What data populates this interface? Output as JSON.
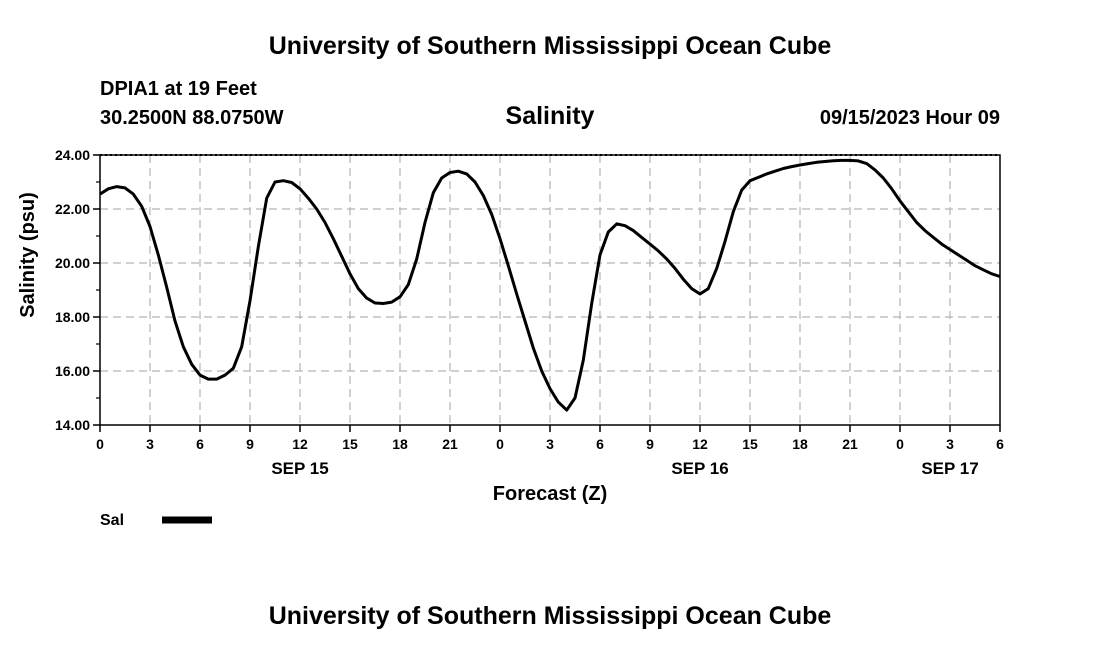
{
  "header": {
    "title": "University of Southern Mississippi Ocean Cube",
    "station": "DPIA1 at 19 Feet",
    "coords": "30.2500N  88.0750W",
    "timestamp": "09/15/2023 Hour 09"
  },
  "footer": {
    "title": "University of Southern Mississippi Ocean Cube"
  },
  "chart_data": {
    "type": "line",
    "title": "Salinity",
    "xlabel": "Forecast (Z)",
    "ylabel": "Salinity (psu)",
    "ylim": [
      14,
      24
    ],
    "xlim": [
      0,
      54
    ],
    "grid": true,
    "x_tick_labels": [
      "0",
      "3",
      "6",
      "9",
      "12",
      "15",
      "18",
      "21",
      "0",
      "3",
      "6",
      "9",
      "12",
      "15",
      "18",
      "21",
      "0",
      "3",
      "6"
    ],
    "y_tick_labels": [
      "14.00",
      "16.00",
      "18.00",
      "20.00",
      "22.00",
      "24.00"
    ],
    "day_labels": [
      {
        "label": "SEP 15",
        "hour": 12
      },
      {
        "label": "SEP 16",
        "hour": 36
      },
      {
        "label": "SEP 17",
        "hour": 51
      }
    ],
    "legend": {
      "placement": "bottom-left",
      "entries": [
        "Sal"
      ]
    },
    "series": [
      {
        "name": "Sal",
        "color": "#000000",
        "x": [
          0,
          0.5,
          1,
          1.5,
          2,
          2.5,
          3,
          3.5,
          4,
          4.5,
          5,
          5.5,
          6,
          6.5,
          7,
          7.5,
          8,
          8.5,
          9,
          9.5,
          10,
          10.5,
          11,
          11.5,
          12,
          12.5,
          13,
          13.5,
          14,
          14.5,
          15,
          15.5,
          16,
          16.5,
          17,
          17.5,
          18,
          18.5,
          19,
          19.5,
          20,
          20.5,
          21,
          21.5,
          22,
          22.5,
          23,
          23.5,
          24,
          24.5,
          25,
          25.5,
          26,
          26.5,
          27,
          27.5,
          28,
          28.5,
          29,
          29.5,
          30,
          30.5,
          31,
          31.5,
          32,
          32.5,
          33,
          33.5,
          34,
          34.5,
          35,
          35.5,
          36,
          36.5,
          37,
          37.5,
          38,
          38.5,
          39,
          39.5,
          40,
          40.5,
          41,
          41.5,
          42,
          42.5,
          43,
          43.5,
          44,
          44.5,
          45,
          45.5,
          46,
          46.5,
          47,
          47.5,
          48,
          48.5,
          49,
          49.5,
          50,
          50.5,
          51,
          51.5,
          52,
          52.5,
          53,
          53.5,
          54
        ],
        "values": [
          22.55,
          22.75,
          22.83,
          22.78,
          22.55,
          22.1,
          21.35,
          20.3,
          19.1,
          17.85,
          16.9,
          16.25,
          15.85,
          15.7,
          15.7,
          15.85,
          16.1,
          16.9,
          18.6,
          20.6,
          22.4,
          23.0,
          23.05,
          22.98,
          22.75,
          22.4,
          22.0,
          21.5,
          20.9,
          20.25,
          19.6,
          19.05,
          18.7,
          18.52,
          18.5,
          18.55,
          18.75,
          19.2,
          20.15,
          21.5,
          22.6,
          23.15,
          23.35,
          23.4,
          23.3,
          23.0,
          22.5,
          21.8,
          20.9,
          19.9,
          18.85,
          17.85,
          16.85,
          16.0,
          15.35,
          14.85,
          14.55,
          15.0,
          16.4,
          18.5,
          20.3,
          21.15,
          21.45,
          21.38,
          21.2,
          20.95,
          20.7,
          20.45,
          20.15,
          19.8,
          19.4,
          19.05,
          18.85,
          19.05,
          19.8,
          20.8,
          21.9,
          22.7,
          23.05,
          23.17,
          23.3,
          23.4,
          23.5,
          23.57,
          23.63,
          23.68,
          23.73,
          23.76,
          23.79,
          23.8,
          23.8,
          23.78,
          23.68,
          23.45,
          23.15,
          22.75,
          22.3,
          21.9,
          21.5,
          21.2,
          20.95,
          20.7,
          20.5,
          20.3,
          20.1,
          19.9,
          19.75,
          19.6,
          19.5
        ]
      }
    ]
  }
}
